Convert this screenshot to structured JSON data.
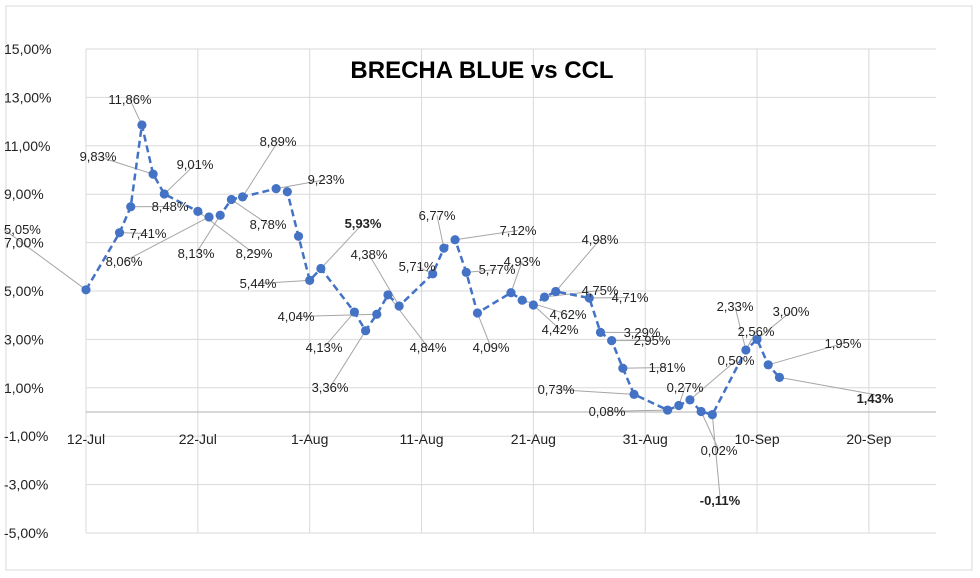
{
  "chart_data": {
    "type": "line",
    "title": "BRECHA BLUE vs CCL",
    "xlabel": "",
    "ylabel": "",
    "x_ticks": [
      "12-Jul",
      "22-Jul",
      "1-Aug",
      "11-Aug",
      "21-Aug",
      "31-Aug",
      "10-Sep",
      "20-Sep"
    ],
    "y_ticks": [
      "15,00%",
      "13,00%",
      "11,00%",
      "9,00%",
      "7,00%",
      "5,00%",
      "3,00%",
      "1,00%",
      "-1,00%",
      "-3,00%",
      "-5,00%"
    ],
    "ylim": [
      -5,
      15
    ],
    "xlim": [
      "2023-07-12",
      "2023-09-20"
    ],
    "grid": true,
    "series": [
      {
        "color": "#4472c4",
        "line_style": "dashed",
        "x": [
          "2023-07-12",
          "2023-07-15",
          "2023-07-16",
          "2023-07-17",
          "2023-07-18",
          "2023-07-19",
          "2023-07-22",
          "2023-07-23",
          "2023-07-24",
          "2023-07-25",
          "2023-07-26",
          "2023-07-29",
          "2023-07-30",
          "2023-07-31",
          "2023-08-01",
          "2023-08-02",
          "2023-08-05",
          "2023-08-06",
          "2023-08-07",
          "2023-08-08",
          "2023-08-09",
          "2023-08-12",
          "2023-08-13",
          "2023-08-14",
          "2023-08-15",
          "2023-08-16",
          "2023-08-19",
          "2023-08-20",
          "2023-08-21",
          "2023-08-22",
          "2023-08-23",
          "2023-08-26",
          "2023-08-27",
          "2023-08-28",
          "2023-08-29",
          "2023-08-30",
          "2023-09-02",
          "2023-09-03",
          "2023-09-04",
          "2023-09-05",
          "2023-09-06",
          "2023-09-09",
          "2023-09-10",
          "2023-09-11",
          "2023-09-12"
        ],
        "y": [
          5.05,
          7.41,
          8.48,
          11.86,
          9.83,
          9.01,
          8.29,
          8.06,
          8.13,
          8.78,
          8.89,
          9.23,
          9.1,
          7.26,
          5.44,
          5.93,
          4.13,
          3.36,
          4.04,
          4.84,
          4.38,
          5.71,
          6.77,
          7.12,
          5.77,
          4.09,
          4.93,
          4.62,
          4.42,
          4.75,
          4.98,
          4.71,
          3.29,
          2.95,
          1.81,
          0.73,
          0.08,
          0.27,
          0.5,
          0.02,
          -0.11,
          2.56,
          3.0,
          1.95,
          1.43
        ]
      }
    ],
    "data_labels": [
      {
        "text": "5,05%"
      },
      {
        "text": "7,41%"
      },
      {
        "text": "8,48%"
      },
      {
        "text": "11,86%"
      },
      {
        "text": "9,83%"
      },
      {
        "text": "9,01%"
      },
      {
        "text": "8,29%"
      },
      {
        "text": "8,06%"
      },
      {
        "text": "8,13%"
      },
      {
        "text": "8,78%"
      },
      {
        "text": "8,89%"
      },
      {
        "text": "9,23%"
      },
      {
        "text": "5,44%"
      },
      {
        "text": "5,93%"
      },
      {
        "text": "4,13%"
      },
      {
        "text": "3,36%"
      },
      {
        "text": "4,04%"
      },
      {
        "text": "4,84%"
      },
      {
        "text": "4,38%"
      },
      {
        "text": "5,71%"
      },
      {
        "text": "6,77%"
      },
      {
        "text": "7,12%"
      },
      {
        "text": "5,77%"
      },
      {
        "text": "4,09%"
      },
      {
        "text": "4,93%"
      },
      {
        "text": "4,62%"
      },
      {
        "text": "4,42%"
      },
      {
        "text": "4,75%"
      },
      {
        "text": "4,98%"
      },
      {
        "text": "4,71%"
      },
      {
        "text": "3,29%"
      },
      {
        "text": "2,95%"
      },
      {
        "text": "1,81%"
      },
      {
        "text": "0,73%"
      },
      {
        "text": "0,08%"
      },
      {
        "text": "0,27%"
      },
      {
        "text": "0,50%"
      },
      {
        "text": "0,02%"
      },
      {
        "text": "-0,11%"
      },
      {
        "text": "2,33%"
      },
      {
        "text": "2,56%"
      },
      {
        "text": "3,00%"
      },
      {
        "text": "1,95%"
      },
      {
        "text": "1,43%"
      }
    ]
  }
}
